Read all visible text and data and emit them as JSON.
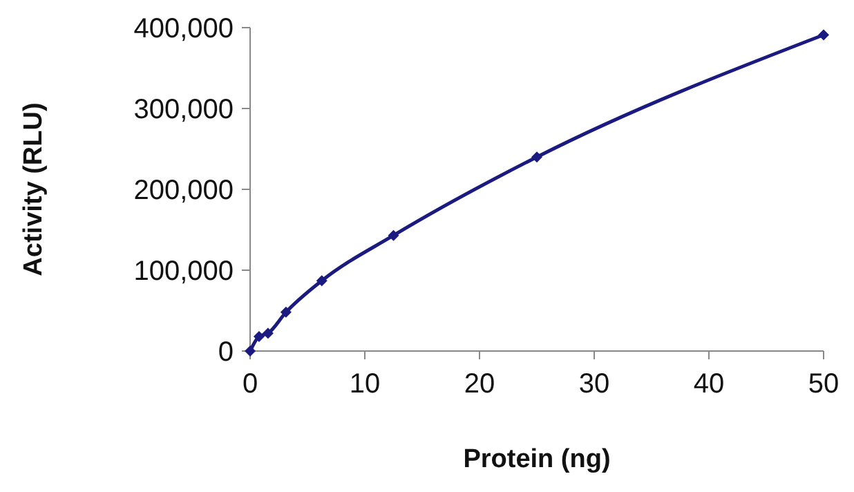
{
  "chart_data": {
    "type": "line",
    "xlabel": "Protein (ng)",
    "ylabel": "Activity (RLU)",
    "x": [
      0,
      0.78,
      1.56,
      3.125,
      6.25,
      12.5,
      25,
      50
    ],
    "series": [
      {
        "color": "#1a1a80",
        "values": [
          0,
          18000,
          22000,
          48000,
          87000,
          143000,
          240000,
          391000
        ]
      }
    ],
    "xlim": [
      0,
      50
    ],
    "xticks": [
      0,
      10,
      20,
      30,
      40,
      50
    ],
    "ylim": [
      0,
      400000
    ],
    "yticks": [
      {
        "value": 0,
        "label": "0"
      },
      {
        "value": 100000,
        "label": "100,000"
      },
      {
        "value": 200000,
        "label": "200,000"
      },
      {
        "value": 300000,
        "label": "300,000"
      },
      {
        "value": 400000,
        "label": "400,000"
      }
    ],
    "grid": false,
    "marker": "diamond",
    "line_style": "solid"
  }
}
